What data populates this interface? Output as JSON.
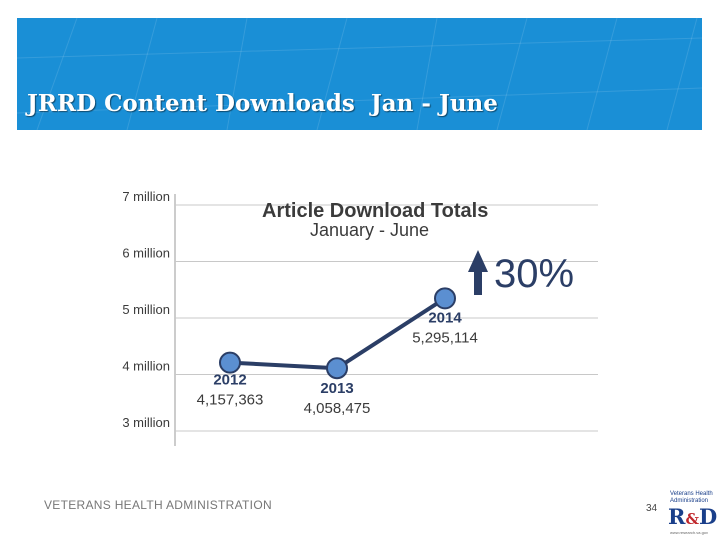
{
  "slide": {
    "title": "JRRD Content Downloads  Jan - June",
    "footer": "VETERANS HEALTH ADMINISTRATION",
    "page_number": "34"
  },
  "logo": {
    "line1": "Veterans Health",
    "line2": "Administration",
    "mark_r": "R",
    "mark_amp": "&",
    "mark_d": "D",
    "line3": "www.research.va.gov"
  },
  "colors": {
    "banner": "#1a8fd6",
    "point_fill": "#5b8fd1",
    "line": "#2b3e66",
    "arrow": "#2b3e66",
    "text_dark": "#3b3b3b"
  },
  "chart_data": {
    "type": "line",
    "title": "Article Download Totals",
    "subtitle": "January - June",
    "x": [
      "2012",
      "2013",
      "2014"
    ],
    "values": [
      4157363,
      4058475,
      5295114
    ],
    "value_labels": [
      "4,157,363",
      "4,058,475",
      "5,295,114"
    ],
    "y_ticks": [
      {
        "value": 3000000,
        "label": "3 million"
      },
      {
        "value": 4000000,
        "label": "4 million"
      },
      {
        "value": 5000000,
        "label": "5 million"
      },
      {
        "value": 6000000,
        "label": "6 million"
      },
      {
        "value": 7000000,
        "label": "7 million"
      }
    ],
    "ylim": [
      3000000,
      7000000
    ],
    "grid": true,
    "annotation": {
      "arrow": "up",
      "text": "30%"
    }
  }
}
